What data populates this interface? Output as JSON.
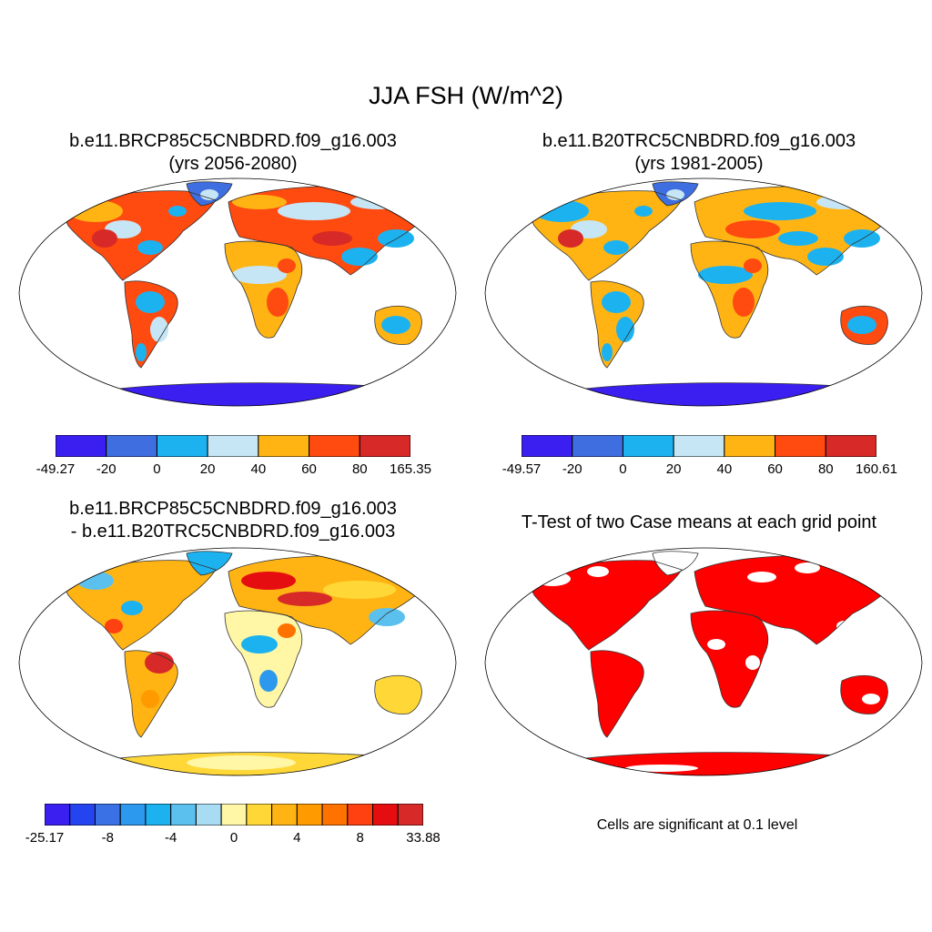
{
  "title": "JJA FSH (W/m^2)",
  "panels": [
    {
      "line1": "b.e11.BRCP85C5CNBDRD.f09_g16.003",
      "line2": "(yrs 2056-2080)"
    },
    {
      "line1": "b.e11.B20TRC5CNBDRD.f09_g16.003",
      "line2": "(yrs 1981-2005)"
    },
    {
      "line1": "b.e11.BRCP85C5CNBDRD.f09_g16.003",
      "line2": "- b.e11.B20TRC5CNBDRD.f09_g16.003"
    },
    {
      "line1": "T-Test of two Case means at each grid point",
      "line2": ""
    }
  ],
  "colorbars": [
    {
      "labels": [
        "-49.27",
        "-20",
        "0",
        "20",
        "40",
        "60",
        "80",
        "165.35"
      ],
      "colors": [
        "#3b1ff0",
        "#3e6ee0",
        "#1cb2f0",
        "#c6e6f5",
        "#ffb414",
        "#ff4a10",
        "#d72a28"
      ]
    },
    {
      "labels": [
        "-49.57",
        "-20",
        "0",
        "20",
        "40",
        "60",
        "80",
        "160.61"
      ],
      "colors": [
        "#3b1ff0",
        "#3e6ee0",
        "#1cb2f0",
        "#c6e6f5",
        "#ffb414",
        "#ff4a10",
        "#d72a28"
      ]
    },
    {
      "labels": [
        "-25.17",
        "-8",
        "-4",
        "0",
        "4",
        "8",
        "33.88"
      ],
      "colors": [
        "#3b1ff0",
        "#2444f0",
        "#3a72e6",
        "#2c98ee",
        "#1cb2f0",
        "#5cc0ee",
        "#a8dcf2",
        "#fff6a6",
        "#ffd838",
        "#ffb414",
        "#ff9a00",
        "#ff7200",
        "#ff4010",
        "#e50d10",
        "#d72a28"
      ]
    }
  ],
  "significance_note": "Cells are significant at 0.1 level",
  "significance_color": "#ff0000"
}
